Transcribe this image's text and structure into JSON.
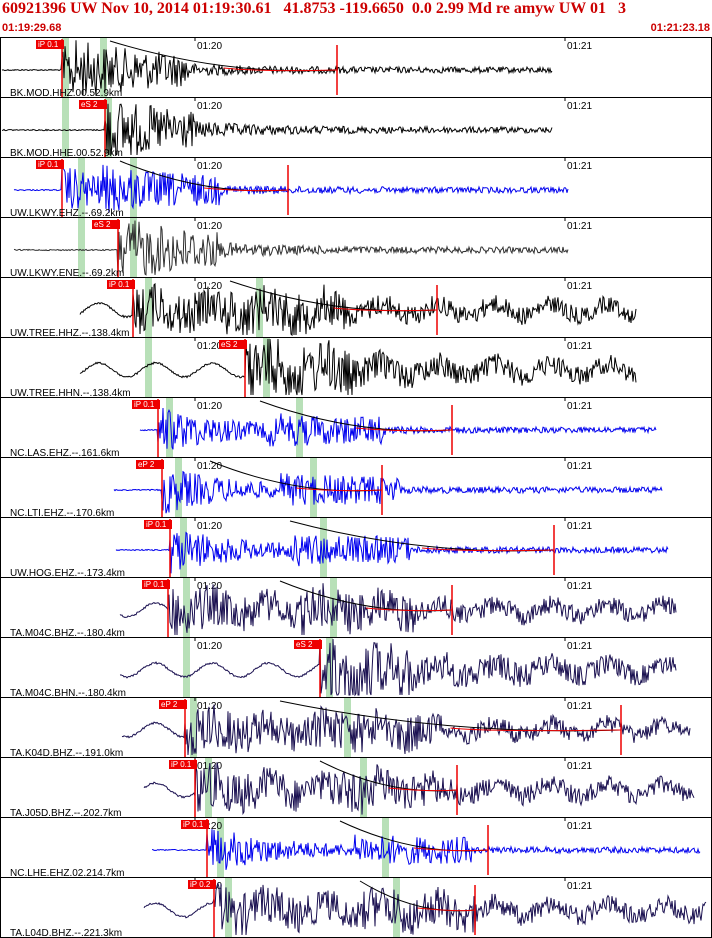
{
  "header": {
    "title": "60921396 UW Nov 10, 2014 01:19:30.61   41.8753 -119.6650  0.0 2.99 Md re amyw UW 01   3",
    "start_time": "01:19:29.68",
    "end_time": "01:21:23.18"
  },
  "time_ticks": [
    "01:20",
    "01:21"
  ],
  "colors": {
    "pick_red": "#ee0000",
    "pick_window_green": "#b8e0b8",
    "border": "#000000",
    "blue": "#0000ee",
    "navy": "#1a1050",
    "gray": "#303030",
    "black": "#000000"
  },
  "traces": [
    {
      "label": "BK.MOD.HHZ.00.52.9km",
      "color": "black",
      "pick": "iP 0.1"
    },
    {
      "label": "BK.MOD.HHE.00.52.9km",
      "color": "black",
      "pick": "eS 2"
    },
    {
      "label": "UW.LKWY.EHZ.--.69.2km",
      "color": "blue",
      "pick": "iP 0.1"
    },
    {
      "label": "UW.LKWY.ENE.--.69.2km",
      "color": "gray",
      "pick": "eS 2"
    },
    {
      "label": "UW.TREE.HHZ.--.138.4km",
      "color": "black",
      "pick": "iP 0.1"
    },
    {
      "label": "UW.TREE.HHN.--.138.4km",
      "color": "black",
      "pick": "eS 2"
    },
    {
      "label": "NC.LAS.EHZ.--.161.6km",
      "color": "blue",
      "pick": "iP 0.1"
    },
    {
      "label": "NC.LTI.EHZ.--.170.6km",
      "color": "blue",
      "pick": "eP 2"
    },
    {
      "label": "UW.HOG.EHZ.--.173.4km",
      "color": "blue",
      "pick": "iP 0.1"
    },
    {
      "label": "TA.M04C.BHZ.--.180.4km",
      "color": "navy",
      "pick": "iP 0.1"
    },
    {
      "label": "TA.M04C.BHN.--.180.4km",
      "color": "navy",
      "pick": "eS 2"
    },
    {
      "label": "TA.K04D.BHZ.--.191.0km",
      "color": "navy",
      "pick": "eP 2"
    },
    {
      "label": "TA.J05D.BHZ.--.202.7km",
      "color": "navy",
      "pick": "iP 0.1"
    },
    {
      "label": "NC.LHE.EHZ.02.214.7km",
      "color": "blue",
      "pick": "iP 0.1"
    },
    {
      "label": "TA.L04D.BHZ.--.221.3km",
      "color": "navy",
      "pick": "iP 0.2"
    }
  ]
}
